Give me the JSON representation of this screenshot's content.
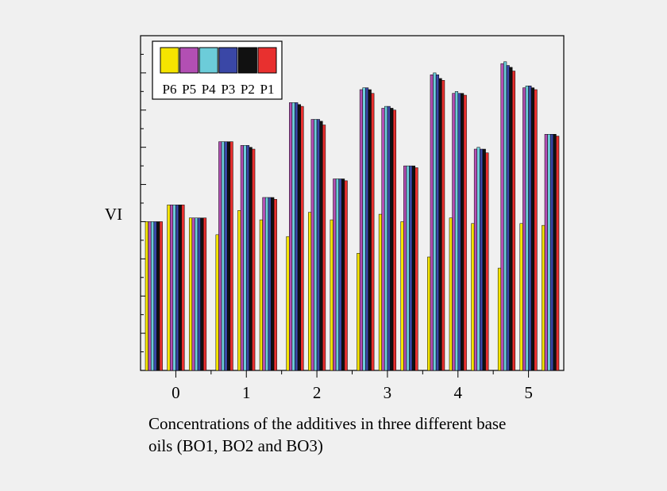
{
  "chart_data": {
    "type": "bar",
    "ylabel": "VI",
    "xlabel_lines": [
      "Concentrations of the additives in three different base",
      "oils (BO1, BO2 and BO3)"
    ],
    "categories": [
      "0",
      "1",
      "2",
      "3",
      "4",
      "5"
    ],
    "base_oils": [
      "BO1",
      "BO2",
      "BO3"
    ],
    "y_ticks_labeled": false,
    "ylim": [
      0,
      9
    ],
    "grid": false,
    "legend_position": "top-left",
    "legend": [
      {
        "name": "P6",
        "color": "#f5e400"
      },
      {
        "name": "P5",
        "color": "#b24fb3"
      },
      {
        "name": "P4",
        "color": "#6cccd9"
      },
      {
        "name": "P3",
        "color": "#3a47a6"
      },
      {
        "name": "P2",
        "color": "#111111"
      },
      {
        "name": "P1",
        "color": "#e8302f"
      }
    ],
    "series": [
      {
        "name": "P1",
        "values": [
          [
            4.0,
            4.45,
            4.1
          ],
          [
            6.15,
            5.95,
            4.6
          ],
          [
            7.1,
            6.6,
            5.1
          ],
          [
            7.45,
            7.0,
            5.45
          ],
          [
            7.8,
            7.4,
            5.85
          ],
          [
            8.05,
            7.55,
            6.3
          ]
        ]
      },
      {
        "name": "P2",
        "values": [
          [
            4.0,
            4.45,
            4.1
          ],
          [
            6.15,
            6.0,
            4.65
          ],
          [
            7.15,
            6.7,
            5.15
          ],
          [
            7.55,
            7.05,
            5.5
          ],
          [
            7.85,
            7.45,
            5.95
          ],
          [
            8.15,
            7.6,
            6.35
          ]
        ]
      },
      {
        "name": "P3",
        "values": [
          [
            4.0,
            4.45,
            4.1
          ],
          [
            6.15,
            6.05,
            4.65
          ],
          [
            7.2,
            6.75,
            5.15
          ],
          [
            7.6,
            7.1,
            5.5
          ],
          [
            7.95,
            7.45,
            5.95
          ],
          [
            8.2,
            7.65,
            6.35
          ]
        ]
      },
      {
        "name": "P4",
        "values": [
          [
            4.0,
            4.45,
            4.1
          ],
          [
            6.15,
            6.05,
            4.65
          ],
          [
            7.2,
            6.75,
            5.15
          ],
          [
            7.6,
            7.1,
            5.5
          ],
          [
            8.0,
            7.5,
            6.0
          ],
          [
            8.3,
            7.65,
            6.35
          ]
        ]
      },
      {
        "name": "P5",
        "values": [
          [
            4.0,
            4.45,
            4.1
          ],
          [
            6.15,
            6.05,
            4.65
          ],
          [
            7.2,
            6.75,
            5.15
          ],
          [
            7.55,
            7.05,
            5.5
          ],
          [
            7.95,
            7.45,
            5.95
          ],
          [
            8.25,
            7.6,
            6.35
          ]
        ]
      },
      {
        "name": "P6",
        "values": [
          [
            4.0,
            4.45,
            4.1
          ],
          [
            3.65,
            4.3,
            4.05
          ],
          [
            3.6,
            4.25,
            4.05
          ],
          [
            3.15,
            4.2,
            4.0
          ],
          [
            3.05,
            4.1,
            3.95
          ],
          [
            2.75,
            3.95,
            3.9
          ]
        ]
      }
    ]
  }
}
